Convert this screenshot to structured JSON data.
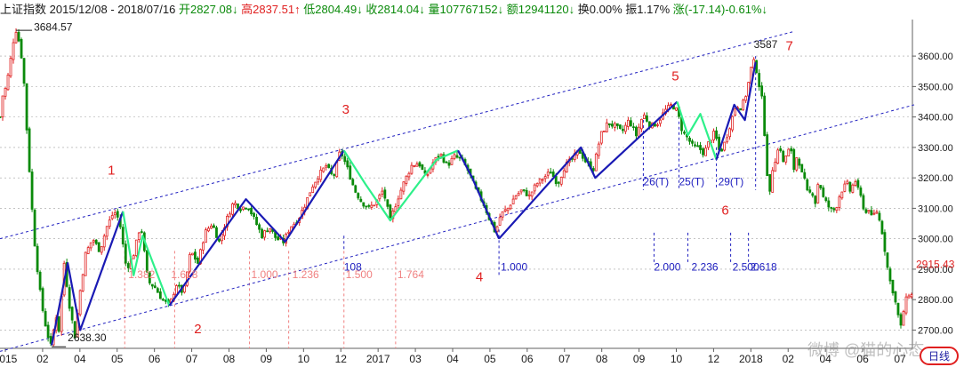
{
  "header": {
    "index_name": "上证指数",
    "date_range": "2015/12/08 - 2018/07/16",
    "open_label": "开",
    "open_value": "2827.08↓",
    "high_label": "高",
    "high_value": "2837.51↑",
    "low_label": "低",
    "low_value": "2804.49↓",
    "close_label": "收",
    "close_value": "2814.04↓",
    "volume_label": "量",
    "volume_value": "107767152↓",
    "amount_label": "额",
    "amount_value": "12941120↓",
    "turnover_label": "换",
    "turnover_value": "0.00%",
    "amplitude_label": "振",
    "amplitude_value": "1.17%",
    "change_label": "涨",
    "change_value": "(-17.14)-0.61%↓"
  },
  "period_button": "日线",
  "watermark": "微博 @猫的心态",
  "chart_data": {
    "type": "candlestick",
    "ylim": [
      2640,
      3720
    ],
    "y_ticks": [
      "2700.00",
      "2800.00",
      "2900.00",
      "3000.00",
      "3100.00",
      "3200.00",
      "3300.00",
      "3400.00",
      "3500.00",
      "3600.00"
    ],
    "last_price_label": "2915.43",
    "x_ticks": [
      "2015",
      "02",
      "04",
      "05",
      "06",
      "07",
      "08",
      "09",
      "10",
      "12",
      "2017",
      "03",
      "04",
      "05",
      "06",
      "07",
      "08",
      "09",
      "10",
      "12",
      "2018",
      "02",
      "04",
      "06",
      "07"
    ],
    "price_path": [
      {
        "i": 0,
        "v": 3400
      },
      {
        "i": 3,
        "v": 3470
      },
      {
        "i": 7,
        "v": 3500
      },
      {
        "i": 11,
        "v": 3570
      },
      {
        "i": 15,
        "v": 3650
      },
      {
        "i": 18,
        "v": 3684.57
      },
      {
        "i": 22,
        "v": 3640
      },
      {
        "i": 26,
        "v": 3560
      },
      {
        "i": 30,
        "v": 3360
      },
      {
        "i": 34,
        "v": 3180
      },
      {
        "i": 38,
        "v": 3010
      },
      {
        "i": 42,
        "v": 2900
      },
      {
        "i": 46,
        "v": 2800
      },
      {
        "i": 50,
        "v": 2730
      },
      {
        "i": 54,
        "v": 2680
      },
      {
        "i": 58,
        "v": 2638.3
      },
      {
        "i": 62,
        "v": 2760
      },
      {
        "i": 66,
        "v": 2700
      },
      {
        "i": 72,
        "v": 2920
      },
      {
        "i": 78,
        "v": 2780
      },
      {
        "i": 84,
        "v": 2680
      },
      {
        "i": 90,
        "v": 2830
      },
      {
        "i": 96,
        "v": 2950
      },
      {
        "i": 104,
        "v": 3000
      },
      {
        "i": 112,
        "v": 2960
      },
      {
        "i": 120,
        "v": 3040
      },
      {
        "i": 128,
        "v": 3090
      },
      {
        "i": 134,
        "v": 3060
      },
      {
        "i": 142,
        "v": 2900
      },
      {
        "i": 150,
        "v": 2950
      },
      {
        "i": 158,
        "v": 3050
      },
      {
        "i": 166,
        "v": 2860
      },
      {
        "i": 174,
        "v": 2840
      },
      {
        "i": 182,
        "v": 2800
      },
      {
        "i": 190,
        "v": 2780
      },
      {
        "i": 198,
        "v": 2850
      },
      {
        "i": 206,
        "v": 2820
      },
      {
        "i": 214,
        "v": 2960
      },
      {
        "i": 222,
        "v": 2920
      },
      {
        "i": 230,
        "v": 3020
      },
      {
        "i": 238,
        "v": 3050
      },
      {
        "i": 246,
        "v": 2990
      },
      {
        "i": 254,
        "v": 3060
      },
      {
        "i": 262,
        "v": 3120
      },
      {
        "i": 270,
        "v": 3100
      },
      {
        "i": 278,
        "v": 3110
      },
      {
        "i": 286,
        "v": 3060
      },
      {
        "i": 294,
        "v": 3010
      },
      {
        "i": 302,
        "v": 3040
      },
      {
        "i": 310,
        "v": 3000
      },
      {
        "i": 318,
        "v": 2990
      },
      {
        "i": 326,
        "v": 3040
      },
      {
        "i": 334,
        "v": 3060
      },
      {
        "i": 342,
        "v": 3110
      },
      {
        "i": 350,
        "v": 3170
      },
      {
        "i": 358,
        "v": 3210
      },
      {
        "i": 366,
        "v": 3240
      },
      {
        "i": 374,
        "v": 3200
      },
      {
        "i": 382,
        "v": 3290
      },
      {
        "i": 390,
        "v": 3230
      },
      {
        "i": 398,
        "v": 3160
      },
      {
        "i": 406,
        "v": 3120
      },
      {
        "i": 414,
        "v": 3100
      },
      {
        "i": 422,
        "v": 3120
      },
      {
        "i": 430,
        "v": 3160
      },
      {
        "i": 438,
        "v": 3060
      },
      {
        "i": 446,
        "v": 3130
      },
      {
        "i": 454,
        "v": 3190
      },
      {
        "i": 462,
        "v": 3240
      },
      {
        "i": 470,
        "v": 3250
      },
      {
        "i": 478,
        "v": 3200
      },
      {
        "i": 486,
        "v": 3250
      },
      {
        "i": 494,
        "v": 3280
      },
      {
        "i": 502,
        "v": 3240
      },
      {
        "i": 510,
        "v": 3270
      },
      {
        "i": 518,
        "v": 3260
      },
      {
        "i": 526,
        "v": 3220
      },
      {
        "i": 534,
        "v": 3160
      },
      {
        "i": 542,
        "v": 3120
      },
      {
        "i": 550,
        "v": 3060
      },
      {
        "i": 556,
        "v": 3020
      },
      {
        "i": 562,
        "v": 3080
      },
      {
        "i": 570,
        "v": 3100
      },
      {
        "i": 578,
        "v": 3140
      },
      {
        "i": 586,
        "v": 3160
      },
      {
        "i": 594,
        "v": 3140
      },
      {
        "i": 602,
        "v": 3180
      },
      {
        "i": 610,
        "v": 3200
      },
      {
        "i": 618,
        "v": 3220
      },
      {
        "i": 626,
        "v": 3180
      },
      {
        "i": 634,
        "v": 3240
      },
      {
        "i": 642,
        "v": 3260
      },
      {
        "i": 650,
        "v": 3290
      },
      {
        "i": 658,
        "v": 3250
      },
      {
        "i": 666,
        "v": 3230
      },
      {
        "i": 674,
        "v": 3340
      },
      {
        "i": 682,
        "v": 3380
      },
      {
        "i": 690,
        "v": 3370
      },
      {
        "i": 698,
        "v": 3350
      },
      {
        "i": 706,
        "v": 3390
      },
      {
        "i": 714,
        "v": 3340
      },
      {
        "i": 722,
        "v": 3410
      },
      {
        "i": 730,
        "v": 3370
      },
      {
        "i": 738,
        "v": 3380
      },
      {
        "i": 746,
        "v": 3420
      },
      {
        "i": 754,
        "v": 3440
      },
      {
        "i": 760,
        "v": 3420
      },
      {
        "i": 766,
        "v": 3350
      },
      {
        "i": 772,
        "v": 3330
      },
      {
        "i": 778,
        "v": 3300
      },
      {
        "i": 784,
        "v": 3300
      },
      {
        "i": 790,
        "v": 3280
      },
      {
        "i": 796,
        "v": 3320
      },
      {
        "i": 802,
        "v": 3350
      },
      {
        "i": 808,
        "v": 3280
      },
      {
        "i": 814,
        "v": 3320
      },
      {
        "i": 820,
        "v": 3380
      },
      {
        "i": 826,
        "v": 3440
      },
      {
        "i": 832,
        "v": 3430
      },
      {
        "i": 838,
        "v": 3480
      },
      {
        "i": 843,
        "v": 3560
      },
      {
        "i": 847,
        "v": 3587
      },
      {
        "i": 851,
        "v": 3520
      },
      {
        "i": 855,
        "v": 3460
      },
      {
        "i": 859,
        "v": 3310
      },
      {
        "i": 863,
        "v": 3120
      },
      {
        "i": 867,
        "v": 3230
      },
      {
        "i": 871,
        "v": 3270
      },
      {
        "i": 875,
        "v": 3310
      },
      {
        "i": 879,
        "v": 3250
      },
      {
        "i": 883,
        "v": 3280
      },
      {
        "i": 887,
        "v": 3300
      },
      {
        "i": 891,
        "v": 3230
      },
      {
        "i": 895,
        "v": 3280
      },
      {
        "i": 899,
        "v": 3220
      },
      {
        "i": 903,
        "v": 3190
      },
      {
        "i": 907,
        "v": 3140
      },
      {
        "i": 911,
        "v": 3160
      },
      {
        "i": 915,
        "v": 3120
      },
      {
        "i": 919,
        "v": 3200
      },
      {
        "i": 923,
        "v": 3140
      },
      {
        "i": 927,
        "v": 3120
      },
      {
        "i": 931,
        "v": 3100
      },
      {
        "i": 935,
        "v": 3090
      },
      {
        "i": 939,
        "v": 3110
      },
      {
        "i": 943,
        "v": 3150
      },
      {
        "i": 947,
        "v": 3170
      },
      {
        "i": 951,
        "v": 3180
      },
      {
        "i": 955,
        "v": 3150
      },
      {
        "i": 959,
        "v": 3200
      },
      {
        "i": 963,
        "v": 3160
      },
      {
        "i": 967,
        "v": 3130
      },
      {
        "i": 971,
        "v": 3080
      },
      {
        "i": 975,
        "v": 3100
      },
      {
        "i": 979,
        "v": 3060
      },
      {
        "i": 983,
        "v": 3100
      },
      {
        "i": 987,
        "v": 3060
      },
      {
        "i": 991,
        "v": 3010
      },
      {
        "i": 995,
        "v": 2920
      },
      {
        "i": 999,
        "v": 2860
      },
      {
        "i": 1003,
        "v": 2820
      },
      {
        "i": 1007,
        "v": 2760
      },
      {
        "i": 1011,
        "v": 2710
      },
      {
        "i": 1015,
        "v": 2780
      },
      {
        "i": 1019,
        "v": 2820
      },
      {
        "i": 1023,
        "v": 2814.04
      }
    ],
    "wave_lines": [
      {
        "color": "#1a1ab4",
        "points": [
          [
            58,
            2650
          ],
          [
            76,
            2920
          ],
          [
            90,
            2700
          ],
          [
            138,
            3090
          ]
        ]
      },
      {
        "color": "#2ef08a",
        "points": [
          [
            138,
            3090
          ],
          [
            150,
            2880
          ],
          [
            160,
            3010
          ],
          [
            190,
            2780
          ]
        ]
      },
      {
        "color": "#1a1ab4",
        "points": [
          [
            190,
            2780
          ],
          [
            276,
            3130
          ],
          [
            320,
            2990
          ],
          [
            386,
            3290
          ]
        ]
      },
      {
        "color": "#2ef08a",
        "points": [
          [
            386,
            3290
          ],
          [
            410,
            3180
          ],
          [
            438,
            3060
          ],
          [
            490,
            3260
          ],
          [
            514,
            3290
          ]
        ]
      },
      {
        "color": "#1a1ab4",
        "points": [
          [
            514,
            3290
          ],
          [
            530,
            3200
          ],
          [
            560,
            3000
          ]
        ]
      },
      {
        "color": "#1a1ab4",
        "points": [
          [
            560,
            3000
          ],
          [
            652,
            3300
          ],
          [
            668,
            3200
          ],
          [
            760,
            3450
          ]
        ]
      },
      {
        "color": "#2ef08a",
        "points": [
          [
            760,
            3450
          ],
          [
            772,
            3340
          ],
          [
            786,
            3410
          ],
          [
            804,
            3260
          ]
        ]
      },
      {
        "color": "#1a1ab4",
        "points": [
          [
            804,
            3260
          ],
          [
            824,
            3440
          ],
          [
            836,
            3390
          ],
          [
            848,
            3580
          ]
        ]
      }
    ],
    "channel_lines": [
      {
        "style": "dashed",
        "color": "#2020c0",
        "from": [
          0,
          3000
        ],
        "to": [
          890,
          3680
        ]
      },
      {
        "style": "dashed",
        "color": "#2020c0",
        "from": [
          0,
          2630
        ],
        "to": [
          1026,
          3440
        ]
      }
    ],
    "wave_labels": [
      {
        "text": "1",
        "i": 125,
        "v": 3210,
        "color": "#e02020"
      },
      {
        "text": "2",
        "i": 222,
        "v": 2690,
        "color": "#e02020"
      },
      {
        "text": "3",
        "i": 388,
        "v": 3410,
        "color": "#e02020"
      },
      {
        "text": "4",
        "i": 538,
        "v": 2860,
        "color": "#e02020"
      },
      {
        "text": "5",
        "i": 758,
        "v": 3520,
        "color": "#e02020"
      },
      {
        "text": "6",
        "i": 814,
        "v": 3080,
        "color": "#e02020"
      },
      {
        "text": "7",
        "i": 886,
        "v": 3620,
        "color": "#e02020"
      }
    ],
    "annotations": [
      {
        "text": "3684.57",
        "i": 38,
        "v": 3683,
        "color": "#1a1a1a"
      },
      {
        "text": "2638.30",
        "i": 76,
        "v": 2664,
        "color": "#1a1a1a"
      },
      {
        "text": "3587",
        "i": 846,
        "v": 3627,
        "color": "#1a1a1a"
      },
      {
        "text": "1.382",
        "i": 144,
        "v": 2870,
        "color": "#f08080"
      },
      {
        "text": "1.618",
        "i": 192,
        "v": 2870,
        "color": "#f08080"
      },
      {
        "text": "1.000",
        "i": 282,
        "v": 2870,
        "color": "#f08080"
      },
      {
        "text": "1.236",
        "i": 328,
        "v": 2870,
        "color": "#f08080"
      },
      {
        "text": "108",
        "i": 386,
        "v": 2895,
        "color": "#2020c0"
      },
      {
        "text": "1.500",
        "i": 388,
        "v": 2870,
        "color": "#f08080"
      },
      {
        "text": "1.764",
        "i": 446,
        "v": 2870,
        "color": "#f08080"
      },
      {
        "text": "1.000",
        "i": 562,
        "v": 2895,
        "color": "#2020c0"
      },
      {
        "text": "2.000",
        "i": 734,
        "v": 2895,
        "color": "#2020c0"
      },
      {
        "text": "2.236",
        "i": 776,
        "v": 2895,
        "color": "#2020c0"
      },
      {
        "text": "2.500",
        "i": 822,
        "v": 2895,
        "color": "#2020c0"
      },
      {
        "text": "2.618",
        "i": 842,
        "v": 2895,
        "color": "#2020c0"
      },
      {
        "text": "26(T)",
        "i": 722,
        "v": 3175,
        "color": "#2020c0"
      },
      {
        "text": "25(T)",
        "i": 762,
        "v": 3175,
        "color": "#2020c0"
      },
      {
        "text": "29(T)",
        "i": 806,
        "v": 3175,
        "color": "#2020c0"
      }
    ],
    "vertical_marks": [
      {
        "i": 140,
        "color": "#f08080"
      },
      {
        "i": 196,
        "color": "#f08080"
      },
      {
        "i": 280,
        "color": "#f08080"
      },
      {
        "i": 324,
        "color": "#f08080"
      },
      {
        "i": 386,
        "color": "#f08080"
      },
      {
        "i": 444,
        "color": "#f08080"
      },
      {
        "i": 386,
        "color": "#2020c0",
        "from": 2960,
        "to": 3010
      },
      {
        "i": 560,
        "color": "#2020c0",
        "from": 2880,
        "to": 3030
      },
      {
        "i": 734,
        "color": "#2020c0",
        "from": 2920,
        "to": 3020
      },
      {
        "i": 772,
        "color": "#2020c0",
        "from": 2920,
        "to": 3020
      },
      {
        "i": 820,
        "color": "#2020c0",
        "from": 2920,
        "to": 3020
      },
      {
        "i": 840,
        "color": "#2020c0",
        "from": 2920,
        "to": 3020
      },
      {
        "i": 722,
        "color": "#2020c0",
        "from": 3160,
        "to": 3390
      },
      {
        "i": 762,
        "color": "#2020c0",
        "from": 3160,
        "to": 3420
      },
      {
        "i": 804,
        "color": "#2020c0",
        "from": 3160,
        "to": 3300
      },
      {
        "i": 848,
        "color": "#2020c0",
        "from": 3160,
        "to": 3600
      }
    ],
    "colors": {
      "up": "#e02020",
      "down": "#0a8a0a",
      "grid": "#a0a0a0",
      "axis": "#606060"
    },
    "grid": true
  }
}
